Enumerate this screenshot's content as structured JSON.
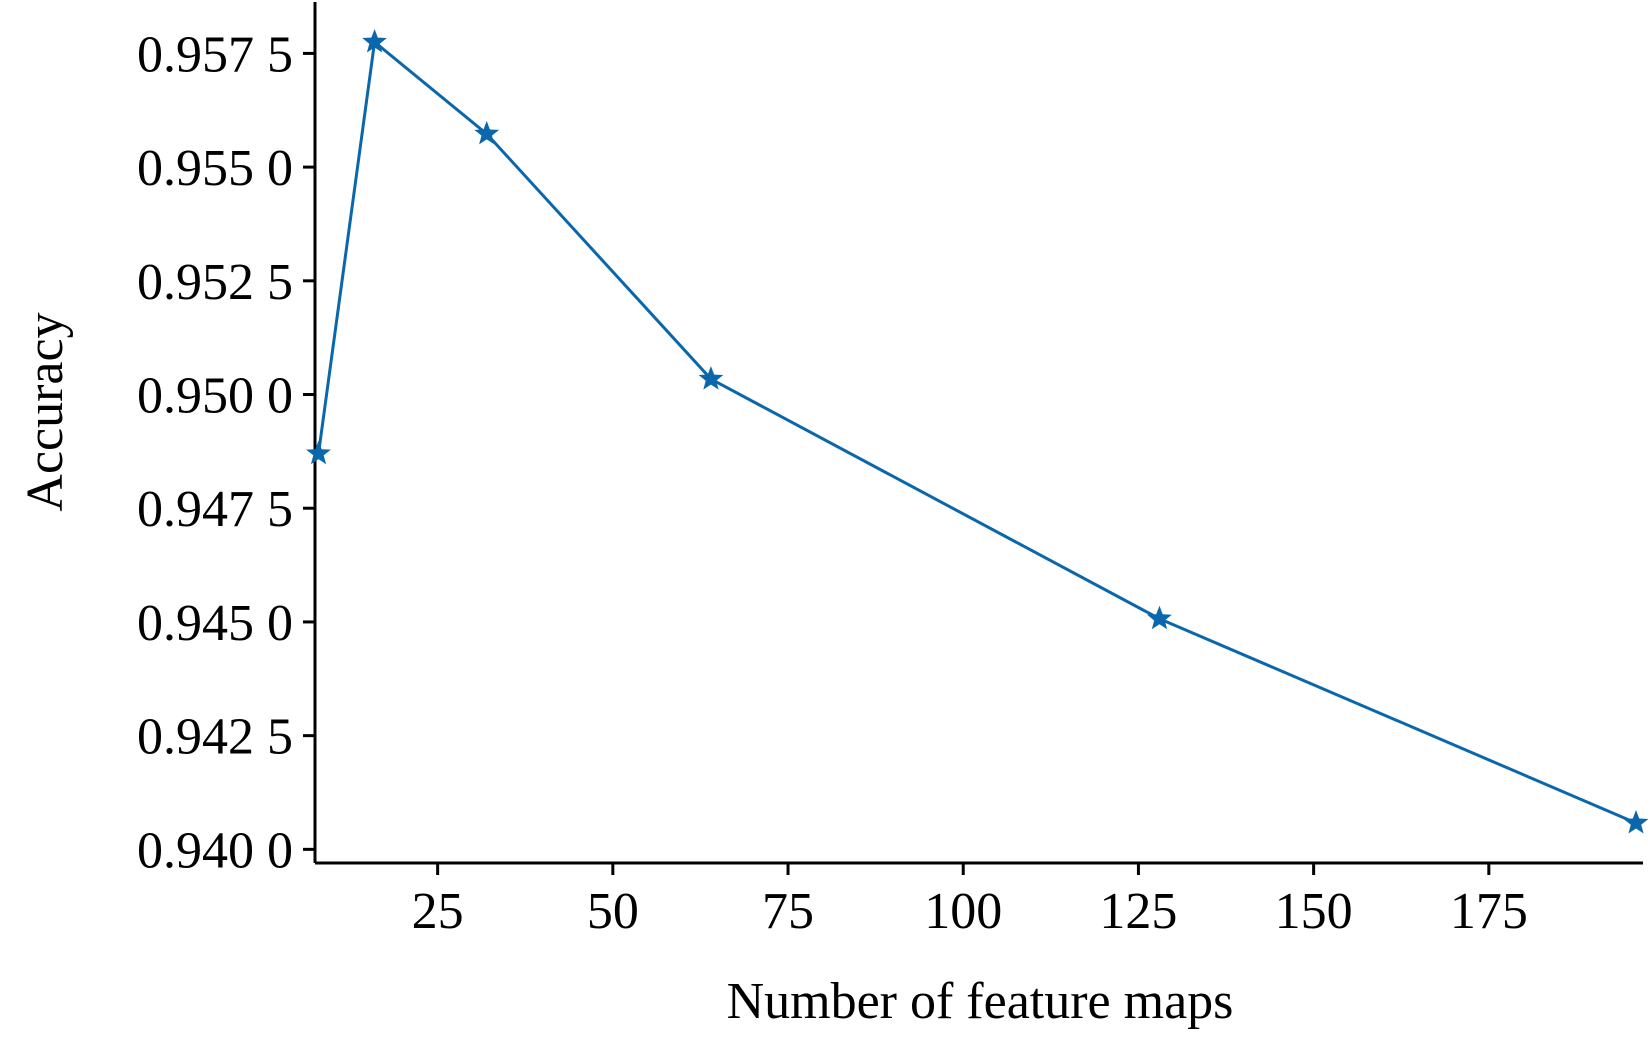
{
  "chart_data": {
    "type": "line",
    "x_label": "Number of feature maps",
    "y_label": "Accuracy",
    "x": [
      8,
      16,
      32,
      64,
      128,
      196
    ],
    "values": [
      0.9487,
      0.95775,
      0.95573,
      0.95034,
      0.94507,
      0.94058
    ],
    "color": "#0a67ab",
    "marker": "star",
    "xlim": [
      7.5,
      197
    ],
    "ylim": [
      0.9397,
      0.95863
    ],
    "xticks": [
      25,
      50,
      75,
      100,
      125,
      150,
      175
    ],
    "yticks": [
      {
        "value": 0.94,
        "label": "0.940 0"
      },
      {
        "value": 0.9425,
        "label": "0.942 5"
      },
      {
        "value": 0.945,
        "label": "0.945 0"
      },
      {
        "value": 0.9475,
        "label": "0.947 5"
      },
      {
        "value": 0.95,
        "label": "0.950 0"
      },
      {
        "value": 0.9525,
        "label": "0.952 5"
      },
      {
        "value": 0.955,
        "label": "0.955 0"
      },
      {
        "value": 0.9575,
        "label": "0.957 5"
      }
    ]
  }
}
